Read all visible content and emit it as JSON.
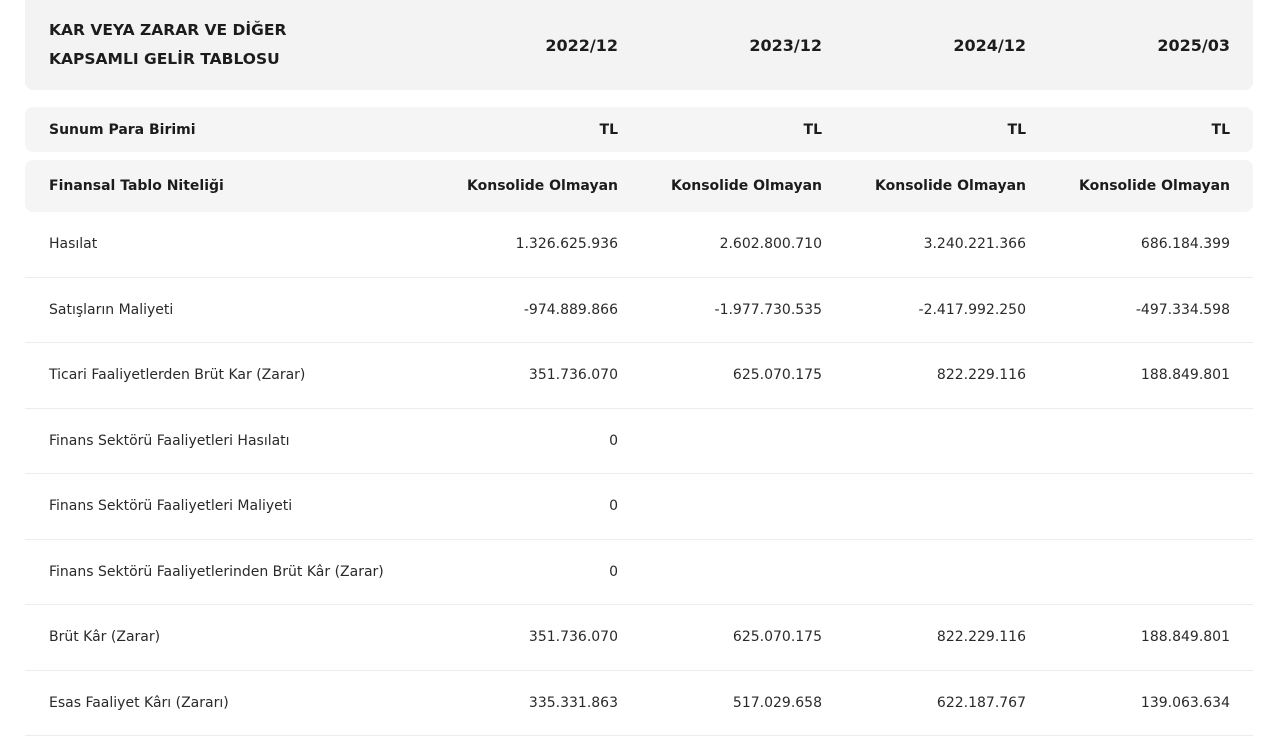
{
  "header": {
    "title": "KAR VEYA ZARAR VE DİĞER KAPSAMLI GELİR TABLOSU",
    "periods": [
      "2022/12",
      "2023/12",
      "2024/12",
      "2025/03"
    ]
  },
  "currency": {
    "label": "Sunum Para Birimi",
    "values": [
      "TL",
      "TL",
      "TL",
      "TL"
    ]
  },
  "statement_type": {
    "label": "Finansal Tablo Niteliği",
    "values": [
      "Konsolide Olmayan",
      "Konsolide Olmayan",
      "Konsolide Olmayan",
      "Konsolide Olmayan"
    ]
  },
  "rows": [
    {
      "label": "Hasılat",
      "values": [
        "1.326.625.936",
        "2.602.800.710",
        "3.240.221.366",
        "686.184.399"
      ]
    },
    {
      "label": "Satışların Maliyeti",
      "values": [
        "-974.889.866",
        "-1.977.730.535",
        "-2.417.992.250",
        "-497.334.598"
      ]
    },
    {
      "label": "Ticari Faaliyetlerden Brüt Kar (Zarar)",
      "values": [
        "351.736.070",
        "625.070.175",
        "822.229.116",
        "188.849.801"
      ]
    },
    {
      "label": "Finans Sektörü Faaliyetleri Hasılatı",
      "values": [
        "0",
        "",
        "",
        ""
      ]
    },
    {
      "label": "Finans Sektörü Faaliyetleri Maliyeti",
      "values": [
        "0",
        "",
        "",
        ""
      ]
    },
    {
      "label": "Finans Sektörü Faaliyetlerinden Brüt Kâr (Zarar)",
      "values": [
        "0",
        "",
        "",
        ""
      ]
    },
    {
      "label": "Brüt Kâr (Zarar)",
      "values": [
        "351.736.070",
        "625.070.175",
        "822.229.116",
        "188.849.801"
      ]
    },
    {
      "label": "Esas Faaliyet Kârı (Zararı)",
      "values": [
        "335.331.863",
        "517.029.658",
        "622.187.767",
        "139.063.634"
      ]
    }
  ]
}
